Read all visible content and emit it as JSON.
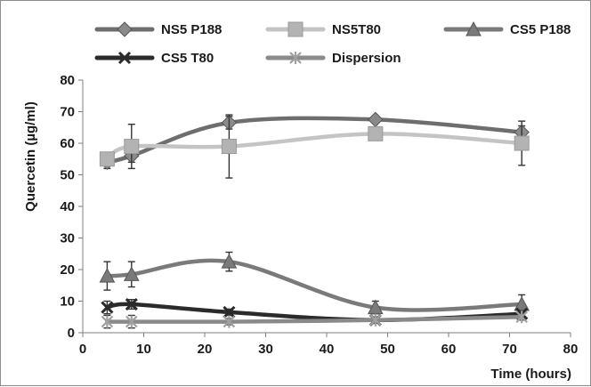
{
  "chart_data": {
    "type": "line",
    "title": "",
    "xlabel": "Time (hours)",
    "ylabel": "Quercetin (µg/ml)",
    "xlim": [
      0,
      80
    ],
    "ylim": [
      0,
      80
    ],
    "xticks": [
      0,
      10,
      20,
      30,
      40,
      50,
      60,
      70,
      80
    ],
    "yticks": [
      0,
      10,
      20,
      30,
      40,
      50,
      60,
      70,
      80
    ],
    "grid": false,
    "legend_position": "top",
    "smooth": true,
    "series": [
      {
        "name": "NS5 P188",
        "marker": "diamond",
        "color": "#6e6e6e",
        "marker_color": "#8a8a8a",
        "x": [
          4,
          8,
          24,
          48,
          72
        ],
        "y": [
          54,
          56,
          66.5,
          67.5,
          63.5
        ],
        "error": [
          2,
          2,
          2,
          1,
          2
        ]
      },
      {
        "name": "NS5T80",
        "marker": "square",
        "color": "#c4c4c4",
        "marker_color": "#b3b3b3",
        "x": [
          4,
          8,
          24,
          48,
          72
        ],
        "y": [
          55,
          59,
          59,
          63,
          60
        ],
        "error": [
          2,
          7,
          10,
          2,
          7
        ]
      },
      {
        "name": "CS5 P188",
        "marker": "triangle",
        "color": "#7a7a7a",
        "marker_color": "#7a7a7a",
        "x": [
          4,
          8,
          24,
          48,
          72
        ],
        "y": [
          18,
          18.5,
          22.5,
          8,
          9
        ],
        "error": [
          4.5,
          4,
          3,
          2,
          3
        ]
      },
      {
        "name": "CS5 T80",
        "marker": "x",
        "color": "#2b2b2b",
        "marker_color": "#2b2b2b",
        "x": [
          4,
          8,
          24,
          48,
          72
        ],
        "y": [
          8,
          9,
          6.5,
          4,
          6
        ],
        "error": [
          2,
          1.5,
          1,
          1,
          1
        ]
      },
      {
        "name": "Dispersion",
        "marker": "asterisk",
        "color": "#8a8a8a",
        "marker_color": "#a0a0a0",
        "x": [
          4,
          8,
          24,
          48,
          72
        ],
        "y": [
          3.5,
          3.5,
          3.5,
          4,
          5
        ],
        "error": [
          2,
          2,
          1,
          1,
          1
        ]
      }
    ]
  }
}
